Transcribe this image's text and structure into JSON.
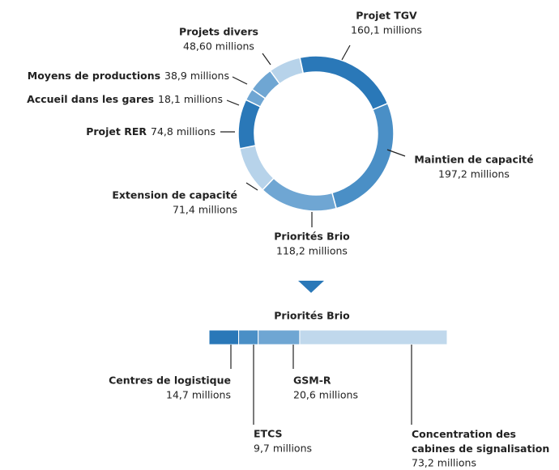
{
  "chart_data": [
    {
      "type": "donut",
      "categories": [
        "Projet TGV",
        "Maintien de capacité",
        "Priorités Brio",
        "Extension de capacité",
        "Projet RER",
        "Accueil dans les gares",
        "Moyens de productions",
        "Projets divers"
      ],
      "values": [
        160.1,
        197.2,
        118.2,
        71.4,
        74.8,
        18.1,
        38.9,
        48.6
      ],
      "value_labels": [
        "160,1 millions",
        "197,2 millions",
        "118,2 millions",
        "71,4 millions",
        "74,8 millions",
        "18,1 millions",
        "38,9 millions",
        "48,60 millions"
      ],
      "colors": [
        "#2a78b8",
        "#4a8fc6",
        "#6fa6d3",
        "#b7d3ea",
        "#2a78b8",
        "#6fa6d3",
        "#6fa6d3",
        "#b7d3ea"
      ]
    },
    {
      "type": "stacked-bar",
      "title": "Priorités Brio",
      "categories": [
        "Centres de logistique",
        "ETCS",
        "GSM-R",
        "Concentration des cabines de signalisation"
      ],
      "values": [
        14.7,
        9.7,
        20.6,
        73.2
      ],
      "value_labels": [
        "14,7 millions",
        "9,7 millions",
        "20,6 millions",
        "73,2 millions"
      ],
      "colors": [
        "#2a78b8",
        "#4a8fc6",
        "#6fa6d3",
        "#c0d8ec"
      ]
    }
  ]
}
